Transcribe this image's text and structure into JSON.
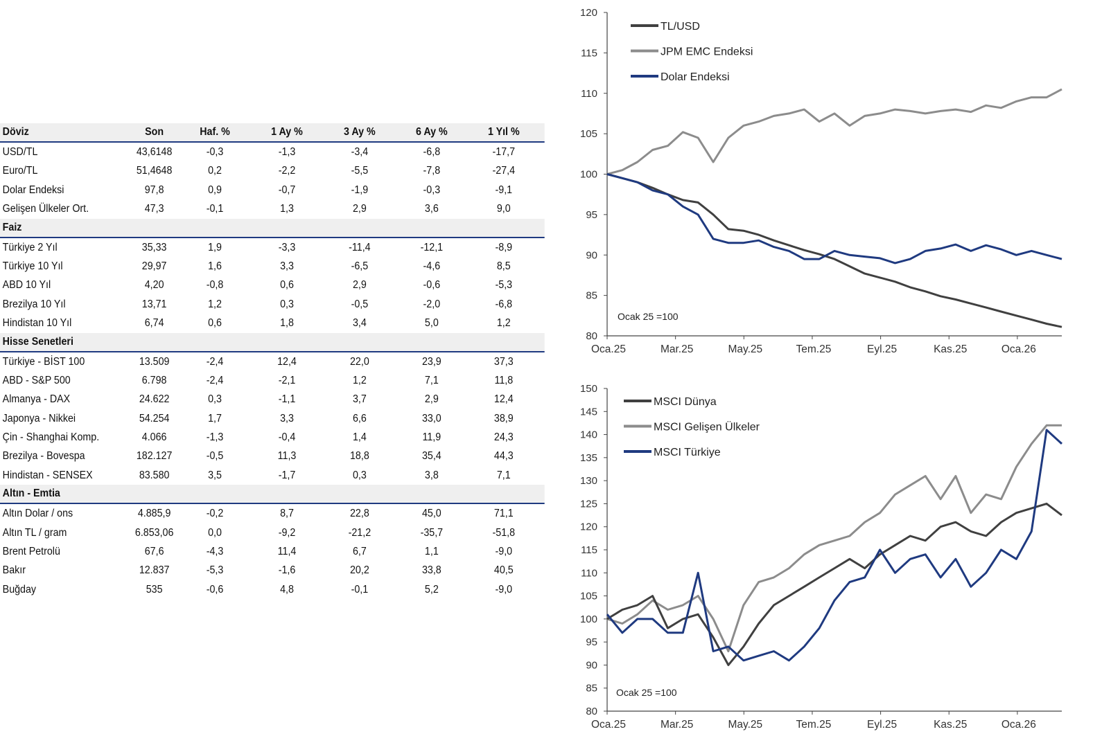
{
  "table": {
    "headers": [
      "Döviz",
      "Son",
      "Haf. %",
      "1 Ay %",
      "3 Ay %",
      "6 Ay %",
      "1 Yıl %"
    ],
    "sections": [
      {
        "title": "Döviz",
        "is_header": true,
        "rows": [
          [
            "USD/TL",
            "43,6148",
            "-0,3",
            "-1,3",
            "-3,4",
            "-6,8",
            "-17,7"
          ],
          [
            "Euro/TL",
            "51,4648",
            "0,2",
            "-2,2",
            "-5,5",
            "-7,8",
            "-27,4"
          ],
          [
            "Dolar Endeksi",
            "97,8",
            "0,9",
            "-0,7",
            "-1,9",
            "-0,3",
            "-9,1"
          ],
          [
            "Gelişen Ülkeler Ort.",
            "47,3",
            "-0,1",
            "1,3",
            "2,9",
            "3,6",
            "9,0"
          ]
        ]
      },
      {
        "title": "Faiz",
        "rows": [
          [
            "Türkiye 2 Yıl",
            "35,33",
            "1,9",
            "-3,3",
            "-11,4",
            "-12,1",
            "-8,9"
          ],
          [
            "Türkiye 10 Yıl",
            "29,97",
            "1,6",
            "3,3",
            "-6,5",
            "-4,6",
            "8,5"
          ],
          [
            "ABD 10 Yıl",
            "4,20",
            "-0,8",
            "0,6",
            "2,9",
            "-0,6",
            "-5,3"
          ],
          [
            "Brezilya 10 Yıl",
            "13,71",
            "1,2",
            "0,3",
            "-0,5",
            "-2,0",
            "-6,8"
          ],
          [
            "Hindistan 10 Yıl",
            "6,74",
            "0,6",
            "1,8",
            "3,4",
            "5,0",
            "1,2"
          ]
        ]
      },
      {
        "title": "Hisse Senetleri",
        "rows": [
          [
            "Türkiye - BİST 100",
            "13.509",
            "-2,4",
            "12,4",
            "22,0",
            "23,9",
            "37,3"
          ],
          [
            "ABD - S&P 500",
            "6.798",
            "-2,4",
            "-2,1",
            "1,2",
            "7,1",
            "11,8"
          ],
          [
            "Almanya - DAX",
            "24.622",
            "0,3",
            "-1,1",
            "3,7",
            "2,9",
            "12,4"
          ],
          [
            "Japonya - Nikkei",
            "54.254",
            "1,7",
            "3,3",
            "6,6",
            "33,0",
            "38,9"
          ],
          [
            "Çin - Shanghai Komp.",
            "4.066",
            "-1,3",
            "-0,4",
            "1,4",
            "11,9",
            "24,3"
          ],
          [
            "Brezilya - Bovespa",
            "182.127",
            "-0,5",
            "11,3",
            "18,8",
            "35,4",
            "44,3"
          ],
          [
            "Hindistan - SENSEX",
            "83.580",
            "3,5",
            "-1,7",
            "0,3",
            "3,8",
            "7,1"
          ]
        ]
      },
      {
        "title": "Altın - Emtia",
        "rows": [
          [
            "Altın Dolar / ons",
            "4.885,9",
            "-0,2",
            "8,7",
            "22,8",
            "45,0",
            "71,1"
          ],
          [
            "Altın TL / gram",
            "6.853,06",
            "0,0",
            "-9,2",
            "-21,2",
            "-35,7",
            "-51,8"
          ],
          [
            "Brent Petrolü",
            "67,6",
            "-4,3",
            "11,4",
            "6,7",
            "1,1",
            "-9,0"
          ],
          [
            "Bakır",
            "12.837",
            "-5,3",
            "-1,6",
            "20,2",
            "33,8",
            "40,5"
          ],
          [
            "Buğday",
            "535",
            "-0,6",
            "4,8",
            "-0,1",
            "5,2",
            "-9,0"
          ]
        ]
      }
    ]
  },
  "chart_data": [
    {
      "type": "line",
      "title": "",
      "annotation": "Ocak 25 =100",
      "x_tick_labels": [
        "Oca.25",
        "Mar.25",
        "May.25",
        "Tem.25",
        "Eyl.25",
        "Kas.25",
        "Oca.26"
      ],
      "ylim": [
        80,
        120
      ],
      "y_ticks": [
        80,
        85,
        90,
        95,
        100,
        105,
        110,
        115,
        120
      ],
      "legend_position": "top-left",
      "series": [
        {
          "name": "TL/USD",
          "color": "#404040",
          "values": [
            100,
            99.5,
            99,
            98.3,
            97.5,
            96.8,
            96.5,
            95,
            93.2,
            93,
            92.5,
            91.8,
            91.2,
            90.6,
            90.1,
            89.5,
            88.6,
            87.7,
            87.2,
            86.7,
            86,
            85.5,
            84.9,
            84.5,
            84,
            83.5,
            83,
            82.5,
            82,
            81.5,
            81.1
          ]
        },
        {
          "name": "JPM EMC Endeksi",
          "color": "#8c8c8c",
          "values": [
            100,
            100.5,
            101.5,
            103,
            103.5,
            105.2,
            104.5,
            101.5,
            104.5,
            106,
            106.5,
            107.2,
            107.5,
            108,
            106.5,
            107.5,
            106,
            107.2,
            107.5,
            108,
            107.8,
            107.5,
            107.8,
            108,
            107.7,
            108.5,
            108.2,
            109,
            109.5,
            109.5,
            110.5
          ]
        },
        {
          "name": "Dolar Endeksi",
          "color": "#1f3a80",
          "values": [
            100,
            99.5,
            99,
            98,
            97.5,
            96,
            95,
            92,
            91.5,
            91.5,
            91.8,
            91,
            90.5,
            89.5,
            89.5,
            90.5,
            90,
            89.8,
            89.6,
            89,
            89.5,
            90.5,
            90.8,
            91.3,
            90.5,
            91.2,
            90.7,
            90,
            90.5,
            90,
            89.5
          ]
        }
      ]
    },
    {
      "type": "line",
      "title": "",
      "annotation": "Ocak 25 =100",
      "x_tick_labels": [
        "Oca.25",
        "Mar.25",
        "May.25",
        "Tem.25",
        "Eyl.25",
        "Kas.25",
        "Oca.26"
      ],
      "ylim": [
        80,
        150
      ],
      "y_ticks": [
        80,
        85,
        90,
        95,
        100,
        105,
        110,
        115,
        120,
        125,
        130,
        135,
        140,
        145,
        150
      ],
      "legend_position": "top-left",
      "series": [
        {
          "name": "MSCI Dünya",
          "color": "#404040",
          "values": [
            100,
            102,
            103,
            105,
            98,
            100,
            101,
            96,
            90,
            94,
            99,
            103,
            105,
            107,
            109,
            111,
            113,
            111,
            114,
            116,
            118,
            117,
            120,
            121,
            119,
            118,
            121,
            123,
            124,
            125,
            122.5
          ]
        },
        {
          "name": "MSCI Gelişen Ülkeler",
          "color": "#8c8c8c",
          "values": [
            100,
            99,
            101,
            104,
            102,
            103,
            105,
            100,
            93,
            103,
            108,
            109,
            111,
            114,
            116,
            117,
            118,
            121,
            123,
            127,
            129,
            131,
            126,
            131,
            123,
            127,
            126,
            133,
            138,
            142,
            142
          ]
        },
        {
          "name": "MSCI Türkiye",
          "color": "#1f3a80",
          "values": [
            101,
            97,
            100,
            100,
            97,
            97,
            110,
            93,
            94,
            91,
            92,
            93,
            91,
            94,
            98,
            104,
            108,
            109,
            115,
            110,
            113,
            114,
            109,
            113,
            107,
            110,
            115,
            113,
            119,
            141,
            138
          ]
        }
      ]
    }
  ]
}
